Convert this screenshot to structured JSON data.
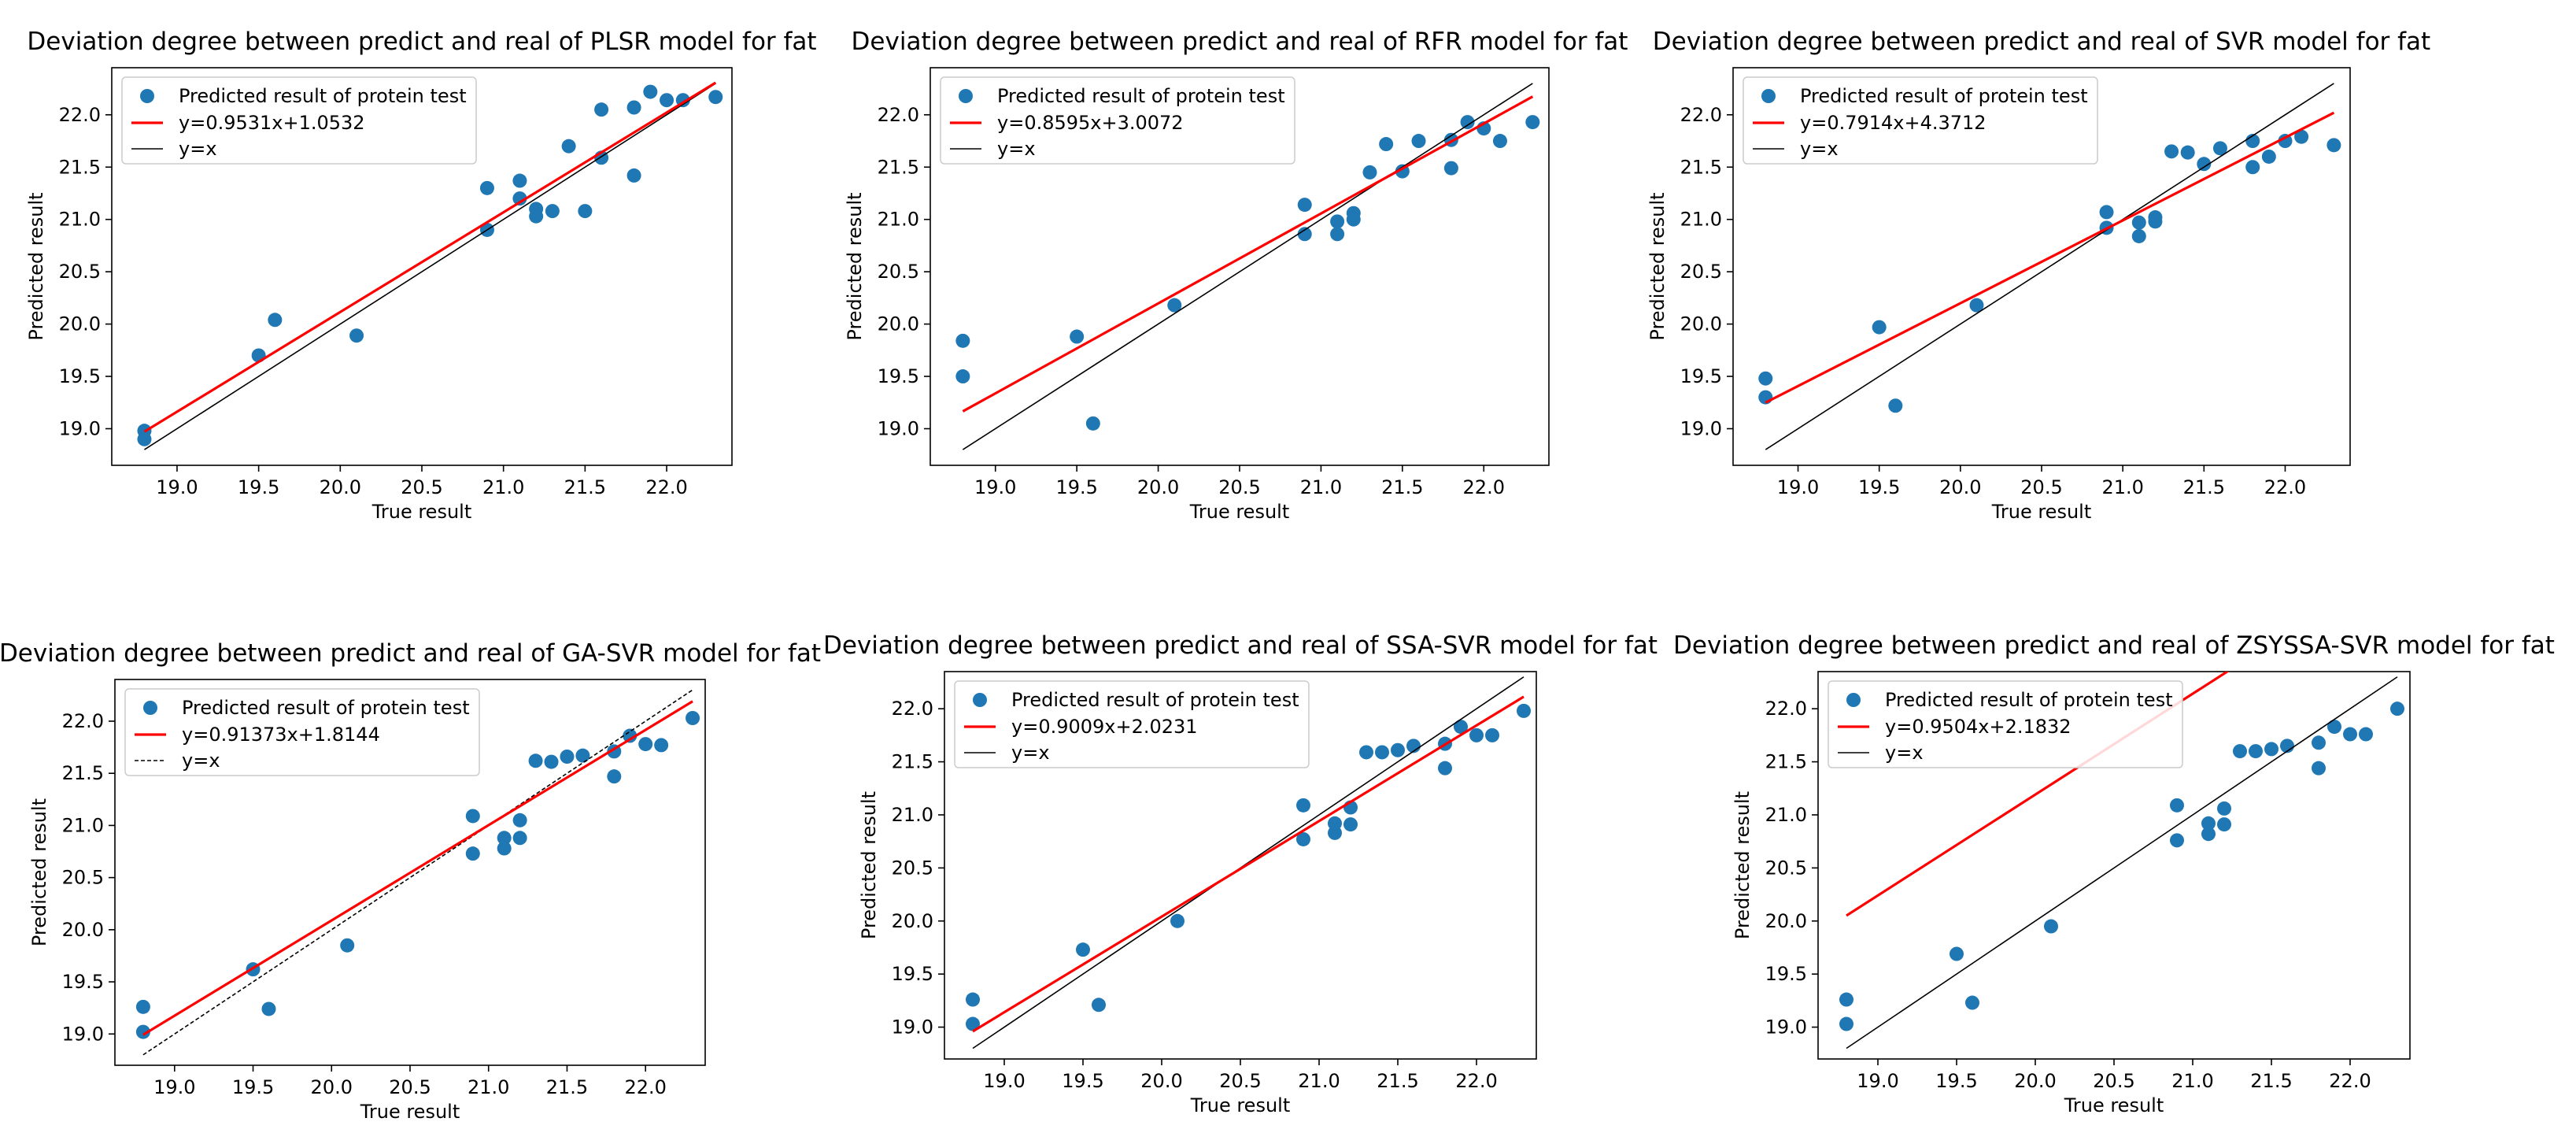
{
  "figure": {
    "legend_scatter_label": "Predicted result of protein test",
    "identity_label": "y=x",
    "colors": {
      "point": "#1f77b4",
      "fit": "#ff0000",
      "identity": "#000000"
    }
  },
  "chart_data": [
    {
      "type": "scatter",
      "title": "Deviation degree between predict and real of PLSR model for fat",
      "xlabel": "True result",
      "ylabel": "Predicted result",
      "xlim": [
        18.6,
        22.4
      ],
      "ylim": [
        18.65,
        22.45
      ],
      "xticks": [
        "19.0",
        "19.5",
        "20.0",
        "20.5",
        "21.0",
        "21.5",
        "22.0"
      ],
      "yticks": [
        "19.0",
        "19.5",
        "20.0",
        "20.5",
        "21.0",
        "21.5",
        "22.0"
      ],
      "legend": {
        "position": "top-left",
        "entries": [
          "Predicted result of protein test",
          "y=0.9531x+1.0532",
          "y=x"
        ]
      },
      "identity_style": "solid",
      "fit": {
        "label": "y=0.9531x+1.0532",
        "slope": 0.9531,
        "intercept": 1.0532,
        "x_range": [
          18.8,
          22.3
        ]
      },
      "points": [
        [
          18.8,
          18.98
        ],
        [
          18.8,
          18.9
        ],
        [
          19.5,
          19.7
        ],
        [
          19.6,
          20.04
        ],
        [
          20.1,
          19.89
        ],
        [
          20.9,
          21.3
        ],
        [
          20.9,
          20.9
        ],
        [
          21.1,
          21.37
        ],
        [
          21.1,
          21.2
        ],
        [
          21.2,
          21.1
        ],
        [
          21.2,
          21.03
        ],
        [
          21.3,
          21.08
        ],
        [
          21.4,
          21.7
        ],
        [
          21.5,
          21.08
        ],
        [
          21.6,
          22.05
        ],
        [
          21.6,
          21.59
        ],
        [
          21.8,
          22.07
        ],
        [
          21.8,
          21.42
        ],
        [
          21.9,
          22.22
        ],
        [
          22.0,
          22.14
        ],
        [
          22.1,
          22.14
        ],
        [
          22.3,
          22.17
        ]
      ]
    },
    {
      "type": "scatter",
      "title": "Deviation degree between predict and real of RFR model for fat",
      "xlabel": "True result",
      "ylabel": "Predicted result",
      "xlim": [
        18.6,
        22.4
      ],
      "ylim": [
        18.65,
        22.45
      ],
      "xticks": [
        "19.0",
        "19.5",
        "20.0",
        "20.5",
        "21.0",
        "21.5",
        "22.0"
      ],
      "yticks": [
        "19.0",
        "19.5",
        "20.0",
        "20.5",
        "21.0",
        "21.5",
        "22.0"
      ],
      "legend": {
        "position": "top-left",
        "entries": [
          "Predicted result of protein test",
          "y=0.8595x+3.0072",
          "y=x"
        ]
      },
      "identity_style": "solid",
      "fit": {
        "label": "y=0.8595x+3.0072",
        "slope": 0.8595,
        "intercept": 3.0072,
        "x_range": [
          18.8,
          22.3
        ]
      },
      "points": [
        [
          18.8,
          19.84
        ],
        [
          18.8,
          19.5
        ],
        [
          19.5,
          19.88
        ],
        [
          19.6,
          19.05
        ],
        [
          20.1,
          20.18
        ],
        [
          20.9,
          21.14
        ],
        [
          20.9,
          20.86
        ],
        [
          21.1,
          20.98
        ],
        [
          21.1,
          20.86
        ],
        [
          21.2,
          21.06
        ],
        [
          21.2,
          21.0
        ],
        [
          21.3,
          21.45
        ],
        [
          21.4,
          21.72
        ],
        [
          21.5,
          21.46
        ],
        [
          21.6,
          21.75
        ],
        [
          21.8,
          21.76
        ],
        [
          21.8,
          21.49
        ],
        [
          21.9,
          21.93
        ],
        [
          22.0,
          21.87
        ],
        [
          22.1,
          21.75
        ],
        [
          22.3,
          21.93
        ]
      ]
    },
    {
      "type": "scatter",
      "title": "Deviation degree between predict and real of SVR model for fat",
      "xlabel": "True result",
      "ylabel": "Predicted result",
      "xlim": [
        18.6,
        22.4
      ],
      "ylim": [
        18.65,
        22.45
      ],
      "xticks": [
        "19.0",
        "19.5",
        "20.0",
        "20.5",
        "21.0",
        "21.5",
        "22.0"
      ],
      "yticks": [
        "19.0",
        "19.5",
        "20.0",
        "20.5",
        "21.0",
        "21.5",
        "22.0"
      ],
      "legend": {
        "position": "top-left",
        "entries": [
          "Predicted result of protein test",
          "y=0.7914x+4.3712",
          "y=x"
        ]
      },
      "identity_style": "solid",
      "fit": {
        "label": "y=0.7914x+4.3712",
        "slope": 0.7914,
        "intercept": 4.3712,
        "x_range": [
          18.8,
          22.3
        ]
      },
      "points": [
        [
          18.8,
          19.48
        ],
        [
          18.8,
          19.3
        ],
        [
          19.5,
          19.97
        ],
        [
          19.6,
          19.22
        ],
        [
          20.1,
          20.18
        ],
        [
          20.9,
          21.07
        ],
        [
          20.9,
          20.92
        ],
        [
          21.1,
          20.97
        ],
        [
          21.1,
          20.84
        ],
        [
          21.2,
          21.02
        ],
        [
          21.2,
          20.98
        ],
        [
          21.3,
          21.65
        ],
        [
          21.4,
          21.64
        ],
        [
          21.5,
          21.53
        ],
        [
          21.6,
          21.68
        ],
        [
          21.8,
          21.75
        ],
        [
          21.8,
          21.5
        ],
        [
          21.9,
          21.6
        ],
        [
          22.0,
          21.75
        ],
        [
          22.1,
          21.79
        ],
        [
          22.3,
          21.71
        ]
      ]
    },
    {
      "type": "scatter",
      "title": "Deviation degree between predict and real of GA-SVR model for fat",
      "xlabel": "True result",
      "ylabel": "Predicted result",
      "xlim": [
        18.62,
        22.38
      ],
      "ylim": [
        18.7,
        22.4
      ],
      "xticks": [
        "19.0",
        "19.5",
        "20.0",
        "20.5",
        "21.0",
        "21.5",
        "22.0"
      ],
      "yticks": [
        "19.0",
        "19.5",
        "20.0",
        "20.5",
        "21.0",
        "21.5",
        "22.0"
      ],
      "legend": {
        "position": "top-left",
        "entries": [
          "Predicted result of protein test",
          "y=0.91373x+1.8144",
          "y=x"
        ]
      },
      "identity_style": "dashed",
      "fit": {
        "label": "y=0.91373x+1.8144",
        "slope": 0.91373,
        "intercept": 1.8144,
        "x_range": [
          18.8,
          22.3
        ]
      },
      "points": [
        [
          18.8,
          19.26
        ],
        [
          18.8,
          19.02
        ],
        [
          19.5,
          19.62
        ],
        [
          19.6,
          19.24
        ],
        [
          20.1,
          19.85
        ],
        [
          20.9,
          21.09
        ],
        [
          20.9,
          20.73
        ],
        [
          21.1,
          20.88
        ],
        [
          21.1,
          20.78
        ],
        [
          21.2,
          21.05
        ],
        [
          21.2,
          20.88
        ],
        [
          21.3,
          21.62
        ],
        [
          21.4,
          21.61
        ],
        [
          21.5,
          21.66
        ],
        [
          21.6,
          21.67
        ],
        [
          21.8,
          21.71
        ],
        [
          21.8,
          21.47
        ],
        [
          21.9,
          21.86
        ],
        [
          22.0,
          21.78
        ],
        [
          22.1,
          21.77
        ],
        [
          22.3,
          22.03
        ]
      ]
    },
    {
      "type": "scatter",
      "title": "Deviation degree between predict and real of SSA-SVR model for fat",
      "xlabel": "True result",
      "ylabel": "Predicted result",
      "xlim": [
        18.62,
        22.38
      ],
      "ylim": [
        18.7,
        22.35
      ],
      "xticks": [
        "19.0",
        "19.5",
        "20.0",
        "20.5",
        "21.0",
        "21.5",
        "22.0"
      ],
      "yticks": [
        "19.0",
        "19.5",
        "20.0",
        "20.5",
        "21.0",
        "21.5",
        "22.0"
      ],
      "legend": {
        "position": "top-left",
        "entries": [
          "Predicted result of protein test",
          "y=0.9009x+2.0231",
          "y=x"
        ]
      },
      "identity_style": "solid",
      "fit": {
        "label": "y=0.9009x+2.0231",
        "slope": 0.9009,
        "intercept": 2.0231,
        "x_range": [
          18.8,
          22.3
        ]
      },
      "points": [
        [
          18.8,
          19.26
        ],
        [
          18.8,
          19.03
        ],
        [
          19.5,
          19.73
        ],
        [
          19.6,
          19.21
        ],
        [
          20.1,
          20.0
        ],
        [
          20.9,
          21.09
        ],
        [
          20.9,
          20.77
        ],
        [
          21.1,
          20.92
        ],
        [
          21.1,
          20.83
        ],
        [
          21.2,
          21.07
        ],
        [
          21.2,
          20.91
        ],
        [
          21.3,
          21.59
        ],
        [
          21.4,
          21.59
        ],
        [
          21.5,
          21.61
        ],
        [
          21.6,
          21.65
        ],
        [
          21.8,
          21.67
        ],
        [
          21.8,
          21.44
        ],
        [
          21.9,
          21.83
        ],
        [
          22.0,
          21.75
        ],
        [
          22.1,
          21.75
        ],
        [
          22.3,
          21.98
        ]
      ]
    },
    {
      "type": "scatter",
      "title": "Deviation degree between predict and real of ZSYSSA-SVR model for fat",
      "xlabel": "True result",
      "ylabel": "Predicted result",
      "xlim": [
        18.62,
        22.38
      ],
      "ylim": [
        18.7,
        22.35
      ],
      "xticks": [
        "19.0",
        "19.5",
        "20.0",
        "20.5",
        "21.0",
        "21.5",
        "22.0"
      ],
      "yticks": [
        "19.0",
        "19.5",
        "20.0",
        "20.5",
        "21.0",
        "21.5",
        "22.0"
      ],
      "legend": {
        "position": "top-left",
        "entries": [
          "Predicted result of protein test",
          "y=0.9504x+2.1832",
          "y=x"
        ]
      },
      "identity_style": "solid",
      "fit": {
        "label": "y=0.9504x+2.1832",
        "slope": 0.9504,
        "intercept": 2.1832,
        "x_range": [
          18.8,
          22.3
        ]
      },
      "points": [
        [
          18.8,
          19.26
        ],
        [
          18.8,
          19.03
        ],
        [
          19.5,
          19.69
        ],
        [
          19.6,
          19.23
        ],
        [
          20.1,
          19.95
        ],
        [
          20.9,
          21.09
        ],
        [
          20.9,
          20.76
        ],
        [
          21.1,
          20.92
        ],
        [
          21.1,
          20.82
        ],
        [
          21.2,
          21.06
        ],
        [
          21.2,
          20.91
        ],
        [
          21.3,
          21.6
        ],
        [
          21.4,
          21.6
        ],
        [
          21.5,
          21.62
        ],
        [
          21.6,
          21.65
        ],
        [
          21.8,
          21.68
        ],
        [
          21.8,
          21.44
        ],
        [
          21.9,
          21.83
        ],
        [
          22.0,
          21.76
        ],
        [
          22.1,
          21.76
        ],
        [
          22.3,
          22.0
        ]
      ]
    }
  ]
}
